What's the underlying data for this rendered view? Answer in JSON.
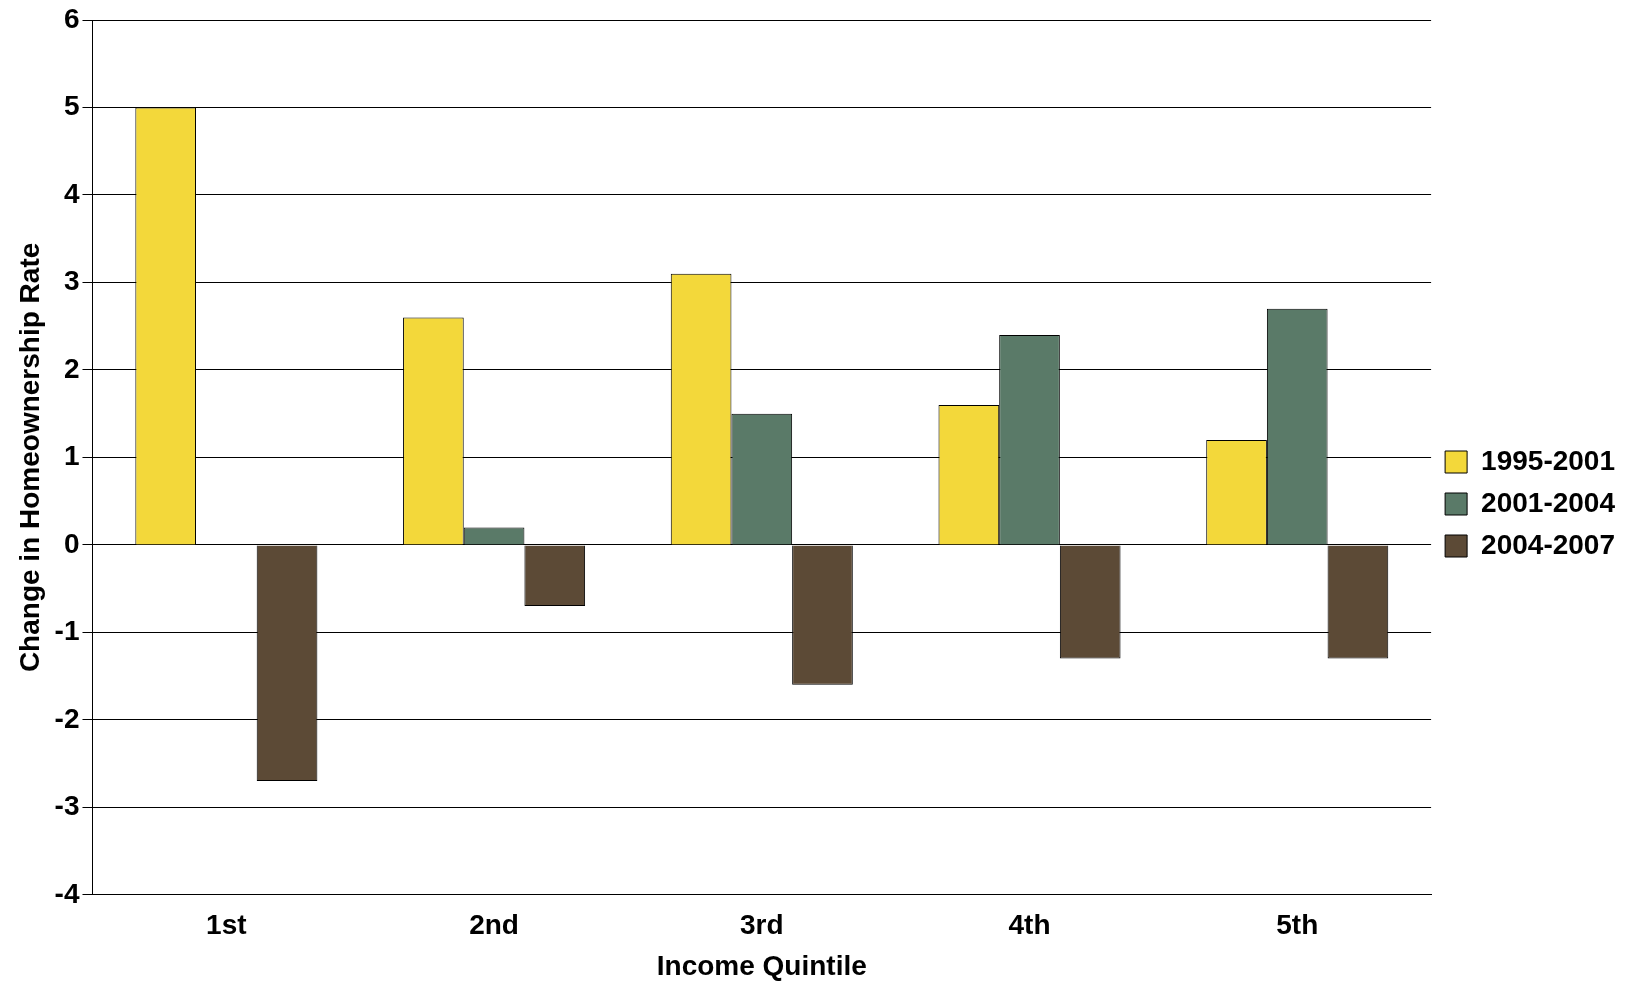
{
  "chart_data": {
    "type": "bar",
    "xlabel": "Income Quintile",
    "ylabel": "Change in Homeownership Rate",
    "categories": [
      "1st",
      "2nd",
      "3rd",
      "4th",
      "5th"
    ],
    "series": [
      {
        "name": "1995-2001",
        "color": "#f3d83a",
        "values": [
          5.0,
          2.6,
          3.1,
          1.6,
          1.2
        ]
      },
      {
        "name": "2001-2004",
        "color": "#5a7a68",
        "values": [
          0,
          0.2,
          1.5,
          2.4,
          2.7
        ]
      },
      {
        "name": "2004-2007",
        "color": "#5c4a36",
        "values": [
          -2.7,
          -0.7,
          -1.6,
          -1.3,
          -1.3
        ]
      }
    ],
    "ylim": [
      -4,
      6
    ],
    "yticks": [
      -4,
      -3,
      -2,
      -1,
      0,
      1,
      2,
      3,
      4,
      5,
      6
    ],
    "grid": "y",
    "legend": "right"
  }
}
